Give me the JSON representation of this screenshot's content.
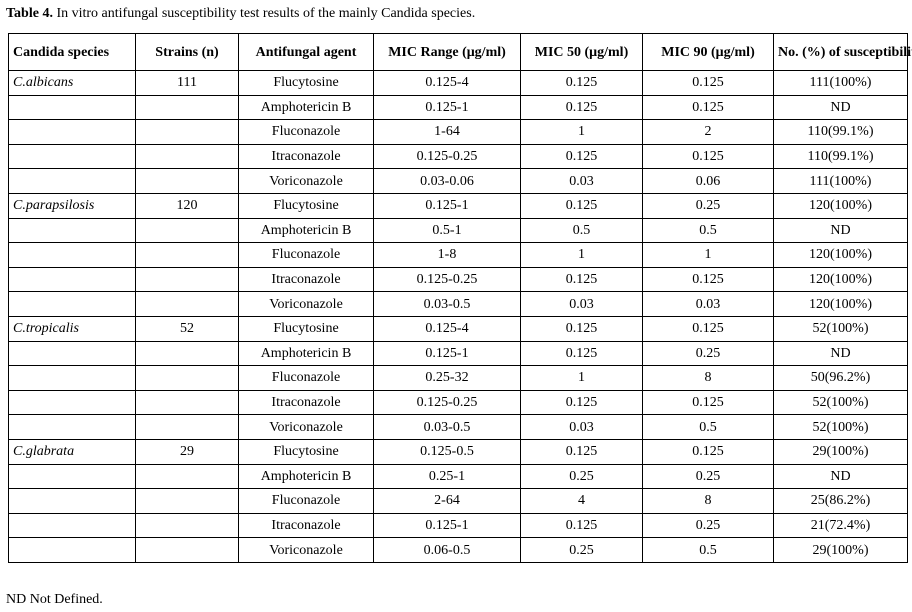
{
  "caption": {
    "label": "Table 4.",
    "text": " In vitro antifungal susceptibility test results of the mainly Candida species."
  },
  "table": {
    "headers": [
      "Candida species",
      "Strains (n)",
      "Antifungal agent",
      "MIC Range (μg/ml)",
      "MIC 50 (μg/ml)",
      "MIC 90 (μg/ml)",
      "No. (%) of susceptibility"
    ],
    "rows": [
      [
        "C.albicans",
        "111",
        "Flucytosine",
        "0.125-4",
        "0.125",
        "0.125",
        "111(100%)"
      ],
      [
        "",
        "",
        "Amphotericin B",
        "0.125-1",
        "0.125",
        "0.125",
        "ND"
      ],
      [
        "",
        "",
        "Fluconazole",
        "1-64",
        "1",
        "2",
        "110(99.1%)"
      ],
      [
        "",
        "",
        "Itraconazole",
        "0.125-0.25",
        "0.125",
        "0.125",
        "110(99.1%)"
      ],
      [
        "",
        "",
        "Voriconazole",
        "0.03-0.06",
        "0.03",
        "0.06",
        "111(100%)"
      ],
      [
        "C.parapsilosis",
        "120",
        "Flucytosine",
        "0.125-1",
        "0.125",
        "0.25",
        "120(100%)"
      ],
      [
        "",
        "",
        "Amphotericin B",
        "0.5-1",
        "0.5",
        "0.5",
        "ND"
      ],
      [
        "",
        "",
        "Fluconazole",
        "1-8",
        "1",
        "1",
        "120(100%)"
      ],
      [
        "",
        "",
        "Itraconazole",
        "0.125-0.25",
        "0.125",
        "0.125",
        "120(100%)"
      ],
      [
        "",
        "",
        "Voriconazole",
        "0.03-0.5",
        "0.03",
        "0.03",
        "120(100%)"
      ],
      [
        "C.tropicalis",
        "52",
        "Flucytosine",
        "0.125-4",
        "0.125",
        "0.125",
        "52(100%)"
      ],
      [
        "",
        "",
        "Amphotericin B",
        "0.125-1",
        "0.125",
        "0.25",
        "ND"
      ],
      [
        "",
        "",
        "Fluconazole",
        "0.25-32",
        "1",
        "8",
        "50(96.2%)"
      ],
      [
        "",
        "",
        "Itraconazole",
        "0.125-0.25",
        "0.125",
        "0.125",
        "52(100%)"
      ],
      [
        "",
        "",
        "Voriconazole",
        "0.03-0.5",
        "0.03",
        "0.5",
        "52(100%)"
      ],
      [
        "C.glabrata",
        "29",
        "Flucytosine",
        "0.125-0.5",
        "0.125",
        "0.125",
        "29(100%)"
      ],
      [
        "",
        "",
        "Amphotericin B",
        "0.25-1",
        "0.25",
        "0.25",
        "ND"
      ],
      [
        "",
        "",
        "Fluconazole",
        "2-64",
        "4",
        "8",
        "25(86.2%)"
      ],
      [
        "",
        "",
        "Itraconazole",
        "0.125-1",
        "0.125",
        "0.25",
        "21(72.4%)"
      ],
      [
        "",
        "",
        "Voriconazole",
        "0.06-0.5",
        "0.25",
        "0.5",
        "29(100%)"
      ]
    ]
  },
  "footnote": "ND Not Defined."
}
